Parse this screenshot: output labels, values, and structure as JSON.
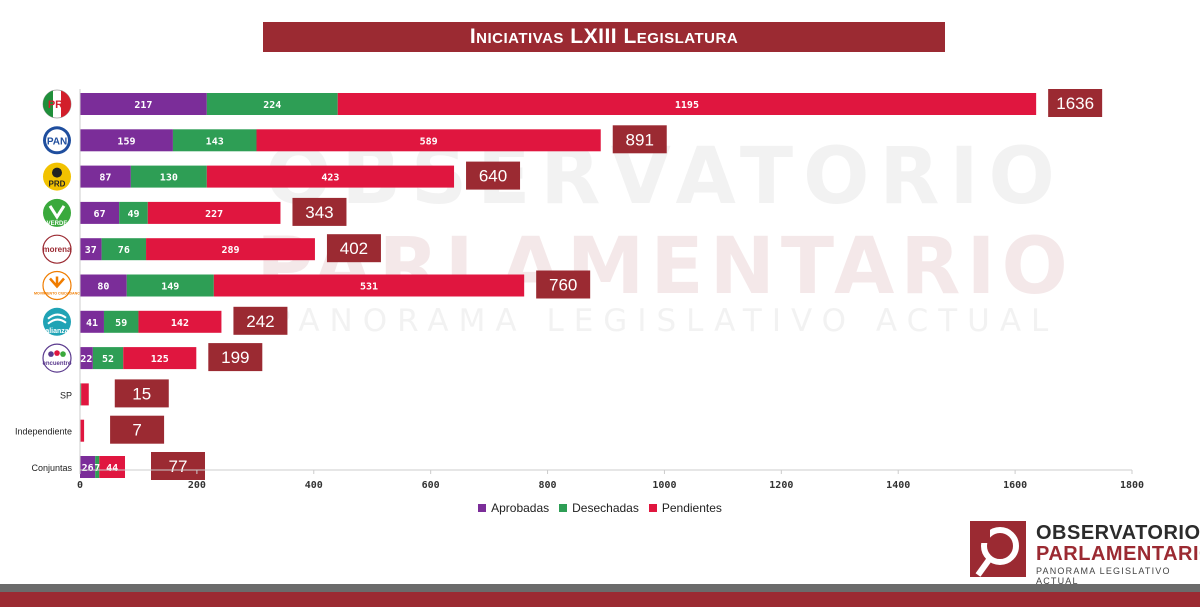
{
  "chart_data": {
    "type": "bar",
    "orientation": "horizontal",
    "stacked": true,
    "title": "Iniciativas LXIII Legislatura",
    "categories": [
      "PRI",
      "PAN",
      "PRD",
      "PVEM",
      "Morena",
      "Movimiento Ciudadano",
      "Nueva Alianza",
      "Encuentro Social",
      "SP",
      "Independiente",
      "Conjuntas"
    ],
    "category_labels": [
      "",
      "",
      "",
      "",
      "",
      "",
      "",
      "",
      "SP",
      "Independiente",
      "Conjuntas"
    ],
    "category_icons": [
      "pri-logo",
      "pan-logo",
      "prd-logo",
      "pvem-logo",
      "morena-logo",
      "movimiento-ciudadano-logo",
      "nueva-alianza-logo",
      "encuentro-social-logo",
      "",
      "",
      ""
    ],
    "series": [
      {
        "name": "Aprobadas",
        "color": "#7b2d99",
        "values": [
          217,
          159,
          87,
          67,
          37,
          80,
          41,
          22,
          0,
          0,
          26
        ],
        "labels": [
          "217",
          "159",
          "87",
          "67",
          "37",
          "80",
          "41",
          "22",
          "",
          "",
          "26"
        ]
      },
      {
        "name": "Desechadas",
        "color": "#2e9e55",
        "values": [
          224,
          143,
          130,
          49,
          76,
          149,
          59,
          52,
          2,
          1,
          7
        ],
        "labels": [
          "224",
          "143",
          "130",
          "49",
          "76",
          "149",
          "59",
          "52",
          "",
          "",
          "7"
        ]
      },
      {
        "name": "Pendientes",
        "color": "#e0163f",
        "values": [
          1195,
          589,
          423,
          227,
          289,
          531,
          142,
          125,
          13,
          6,
          44
        ],
        "labels": [
          "1195",
          "589",
          "423",
          "227",
          "289",
          "531",
          "142",
          "125",
          "",
          "",
          "44"
        ]
      }
    ],
    "totals": [
      1636,
      891,
      640,
      343,
      402,
      760,
      242,
      199,
      15,
      7,
      77
    ],
    "xlim": [
      0,
      1800
    ],
    "xticks": [
      0,
      200,
      400,
      600,
      800,
      1000,
      1200,
      1400,
      1600,
      1800
    ],
    "grid": false,
    "legend_position": "bottom-center"
  },
  "colors": {
    "accent": "#9b2a32",
    "total_box": "#9b2a32"
  },
  "watermark": {
    "line1": "OBSERVATORIO",
    "line2": "PARLAMENTARIO",
    "line3": "PANORAMA LEGISLATIVO ACTUAL"
  },
  "logo": {
    "line1": "OBSERVATORIO",
    "line2": "PARLAMENTARIO",
    "line3": "PANORAMA LEGISLATIVO ACTUAL"
  },
  "party_marks": {
    "pri": "PRI",
    "pan": "PAN",
    "prd": "PRD",
    "pvem": "VERDE",
    "morena": "morena",
    "mc": "MOVIMIENTO CIUDADANO",
    "na": "alianza",
    "pes": "encuentro"
  }
}
